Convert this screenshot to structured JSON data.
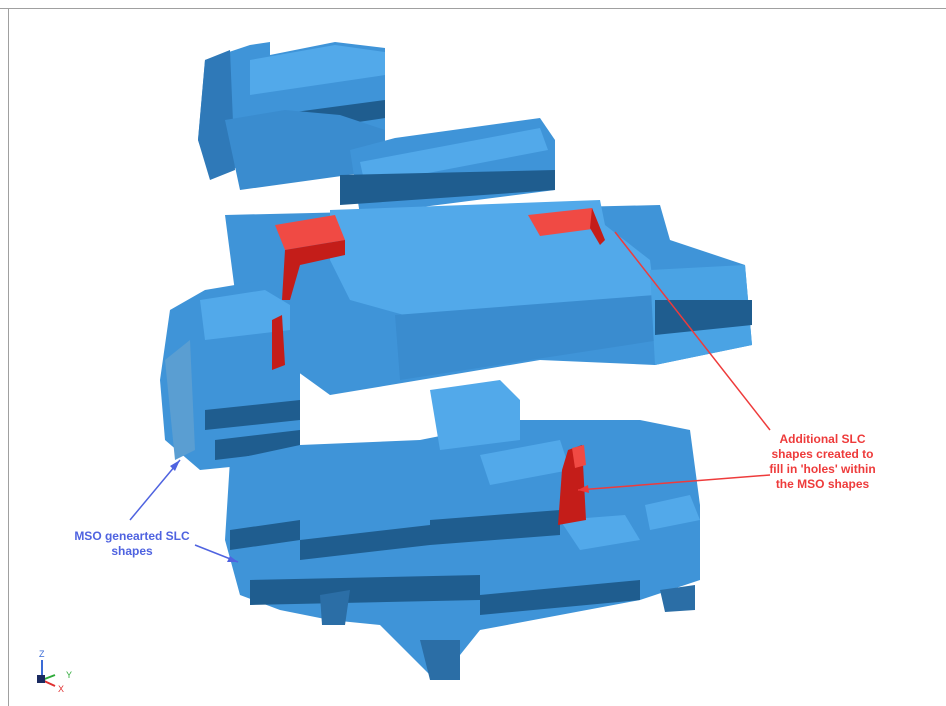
{
  "annotations": {
    "mso_label": "MSO genearted SLC\nshapes",
    "additional_label": "Additional SLC\nshapes created to\nfill in 'holes' within\nthe MSO shapes"
  },
  "triad": {
    "z": "Z",
    "y": "Y",
    "x": "X"
  },
  "colors": {
    "shape_blue": "#3f94d8",
    "shape_top": "#52a9ea",
    "shape_dark": "#1f5d8f",
    "fill_red": "#e8352f",
    "annotation_blue": "#4f63e0",
    "annotation_red": "#ee3b3b"
  }
}
